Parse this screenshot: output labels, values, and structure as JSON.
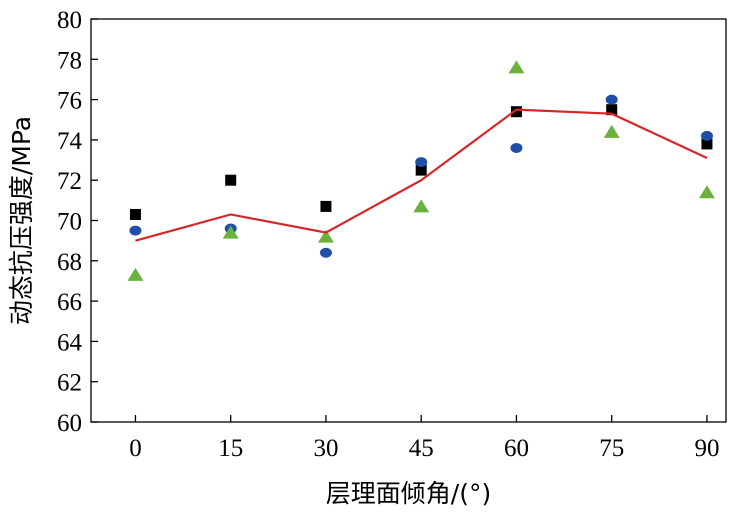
{
  "chart_data": {
    "type": "scatter",
    "xlabel": "层理面倾角/(°)",
    "ylabel": "动态抗压强度/MPa",
    "x_ticks": [
      0,
      15,
      30,
      45,
      60,
      75,
      90
    ],
    "y_ticks": [
      60,
      62,
      64,
      66,
      68,
      70,
      72,
      74,
      76,
      78,
      80
    ],
    "xlim": [
      -7,
      93
    ],
    "ylim": [
      60,
      80
    ],
    "grid": false,
    "legend": "none",
    "series": [
      {
        "marker": "square",
        "color": "#000000",
        "x": [
          0,
          15,
          30,
          45,
          60,
          75,
          90
        ],
        "y": [
          70.3,
          72.0,
          70.7,
          72.5,
          75.4,
          75.5,
          73.8
        ]
      },
      {
        "marker": "circle",
        "color": "#1f4fa8",
        "x": [
          0,
          15,
          30,
          45,
          60,
          75,
          90
        ],
        "y": [
          69.5,
          69.6,
          68.4,
          72.9,
          73.6,
          76.0,
          74.2
        ]
      },
      {
        "marker": "triangle",
        "color": "#6ab23d",
        "x": [
          0,
          15,
          30,
          45,
          60,
          75,
          90
        ],
        "y": [
          67.3,
          69.4,
          69.2,
          70.7,
          77.6,
          74.4,
          71.4
        ]
      },
      {
        "marker": "line",
        "color": "#d62728",
        "x": [
          0,
          15,
          30,
          45,
          60,
          75,
          90
        ],
        "y": [
          69.0,
          70.3,
          69.4,
          72.0,
          75.5,
          75.3,
          73.1
        ]
      }
    ]
  }
}
